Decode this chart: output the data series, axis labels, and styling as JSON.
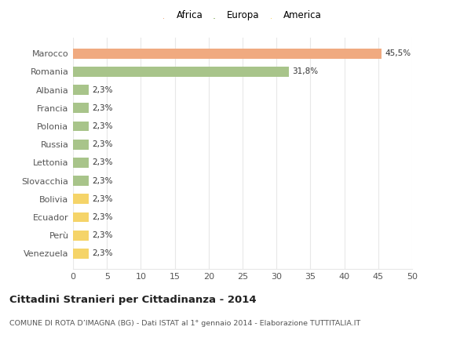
{
  "categories": [
    "Venezuela",
    "Perù",
    "Ecuador",
    "Bolivia",
    "Slovacchia",
    "Lettonia",
    "Russia",
    "Polonia",
    "Francia",
    "Albania",
    "Romania",
    "Marocco"
  ],
  "values": [
    2.3,
    2.3,
    2.3,
    2.3,
    2.3,
    2.3,
    2.3,
    2.3,
    2.3,
    2.3,
    31.8,
    45.5
  ],
  "labels": [
    "2,3%",
    "2,3%",
    "2,3%",
    "2,3%",
    "2,3%",
    "2,3%",
    "2,3%",
    "2,3%",
    "2,3%",
    "2,3%",
    "31,8%",
    "45,5%"
  ],
  "colors": [
    "#f5d469",
    "#f5d469",
    "#f5d469",
    "#f5d469",
    "#a8c48a",
    "#a8c48a",
    "#a8c48a",
    "#a8c48a",
    "#a8c48a",
    "#a8c48a",
    "#a8c48a",
    "#f0aa80"
  ],
  "legend": [
    {
      "label": "Africa",
      "color": "#f0aa80"
    },
    {
      "label": "Europa",
      "color": "#a8c48a"
    },
    {
      "label": "America",
      "color": "#f5d469"
    }
  ],
  "xlim": [
    0,
    50
  ],
  "xticks": [
    0,
    5,
    10,
    15,
    20,
    25,
    30,
    35,
    40,
    45,
    50
  ],
  "title": "Cittadini Stranieri per Cittadinanza - 2014",
  "subtitle": "COMUNE DI ROTA D’IMAGNA (BG) - Dati ISTAT al 1° gennaio 2014 - Elaborazione TUTTITALIA.IT",
  "background_color": "#ffffff",
  "grid_color": "#e8e8e8"
}
